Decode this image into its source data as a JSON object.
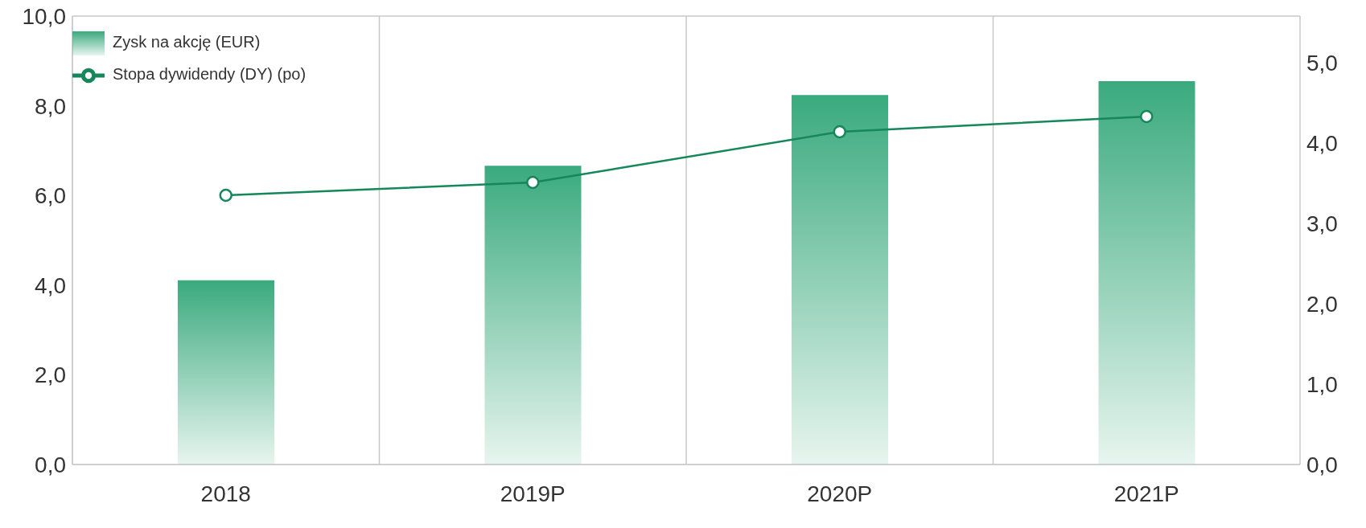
{
  "chart_data": {
    "type": "bar",
    "categories": [
      "2018",
      "2019P",
      "2020P",
      "2021P"
    ],
    "series": [
      {
        "name": "Zysk na akcję (EUR)",
        "color": "#3aaa7e",
        "values": [
          4.11,
          6.66,
          8.24,
          8.55
        ]
      },
      {
        "name": "Stopa dywidendy (DY) (po)",
        "type": "line",
        "axis": "y2",
        "color": "#16875a",
        "marker": "circle",
        "values": [
          3.35,
          3.51,
          4.14,
          4.33
        ]
      }
    ],
    "ylim": [
      0,
      10
    ],
    "yticks": [
      {
        "value": 0,
        "label": "0,0"
      },
      {
        "value": 2,
        "label": "2,0"
      },
      {
        "value": 4,
        "label": "4,0"
      },
      {
        "value": 6,
        "label": "6,0"
      },
      {
        "value": 8,
        "label": "8,0"
      },
      {
        "value": 10,
        "label": "10,0"
      }
    ],
    "y2lim": [
      0,
      5.58
    ],
    "y2ticks": [
      {
        "value": 0,
        "label": "0,0"
      },
      {
        "value": 1,
        "label": "1,0"
      },
      {
        "value": 2,
        "label": "2,0"
      },
      {
        "value": 3,
        "label": "3,0"
      },
      {
        "value": 4,
        "label": "4,0"
      },
      {
        "value": 5,
        "label": "5,0"
      }
    ],
    "grid": true,
    "legend": "top left"
  }
}
